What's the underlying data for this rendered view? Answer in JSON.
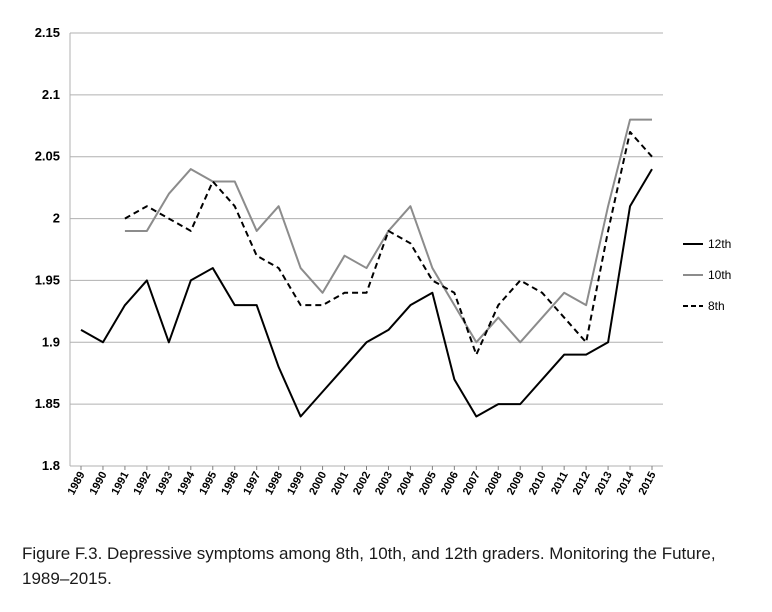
{
  "chart_data": {
    "type": "line",
    "title": "",
    "xlabel": "",
    "ylabel": "",
    "ylim": [
      1.8,
      2.15
    ],
    "yticks": [
      "1.8",
      "1.85",
      "1.9",
      "1.95",
      "2",
      "2.05",
      "2.1",
      "2.15"
    ],
    "x": [
      "1989",
      "1990",
      "1991",
      "1992",
      "1993",
      "1994",
      "1995",
      "1996",
      "1997",
      "1998",
      "1999",
      "2000",
      "2001",
      "2002",
      "2003",
      "2004",
      "2005",
      "2006",
      "2007",
      "2008",
      "2009",
      "2010",
      "2011",
      "2012",
      "2013",
      "2014",
      "2015"
    ],
    "grid": "horizontal",
    "legend_position": "right",
    "series": [
      {
        "name": "12th",
        "color": "#000000",
        "dash": "solid",
        "values": [
          1.91,
          1.9,
          1.93,
          1.95,
          1.9,
          1.95,
          1.96,
          1.93,
          1.93,
          1.88,
          1.84,
          1.86,
          1.88,
          1.9,
          1.91,
          1.93,
          1.94,
          1.87,
          1.84,
          1.85,
          1.85,
          1.87,
          1.89,
          1.89,
          1.9,
          2.01,
          2.04
        ]
      },
      {
        "name": "10th",
        "color": "#8c8c8c",
        "dash": "solid",
        "values": [
          null,
          null,
          1.99,
          1.99,
          2.02,
          2.04,
          2.03,
          2.03,
          1.99,
          2.01,
          1.96,
          1.94,
          1.97,
          1.96,
          1.99,
          2.01,
          1.96,
          1.93,
          1.9,
          1.92,
          1.9,
          1.92,
          1.94,
          1.93,
          2.01,
          2.08,
          2.08
        ]
      },
      {
        "name": "8th",
        "color": "#000000",
        "dash": "dashed",
        "values": [
          null,
          null,
          2.0,
          2.01,
          2.0,
          1.99,
          2.03,
          2.01,
          1.97,
          1.96,
          1.93,
          1.93,
          1.94,
          1.94,
          1.99,
          1.98,
          1.95,
          1.94,
          1.89,
          1.93,
          1.95,
          1.94,
          1.92,
          1.9,
          1.99,
          2.07,
          2.05
        ]
      }
    ]
  },
  "caption": "Figure F.3. Depressive symptoms among 8th, 10th, and 12th graders. Monitoring the Future, 1989–2015."
}
